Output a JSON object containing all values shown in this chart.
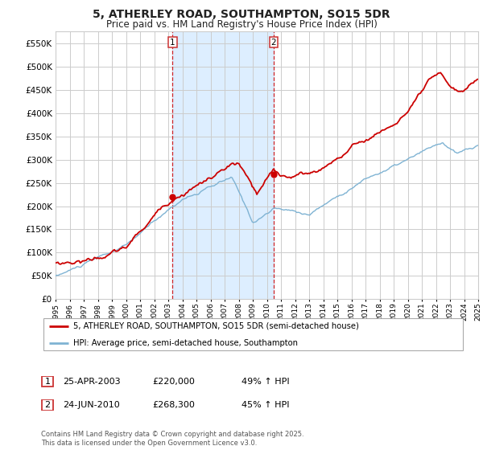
{
  "title": "5, ATHERLEY ROAD, SOUTHAMPTON, SO15 5DR",
  "subtitle": "Price paid vs. HM Land Registry's House Price Index (HPI)",
  "legend_line1": "5, ATHERLEY ROAD, SOUTHAMPTON, SO15 5DR (semi-detached house)",
  "legend_line2": "HPI: Average price, semi-detached house, Southampton",
  "transaction1_date": "25-APR-2003",
  "transaction1_price": 220000,
  "transaction1_pct": "49% ↑ HPI",
  "transaction1_label": "1",
  "transaction2_date": "24-JUN-2010",
  "transaction2_price": 268300,
  "transaction2_pct": "45% ↑ HPI",
  "transaction2_label": "2",
  "footer": "Contains HM Land Registry data © Crown copyright and database right 2025.\nThis data is licensed under the Open Government Licence v3.0.",
  "red_color": "#cc0000",
  "blue_color": "#7fb3d3",
  "shade_color": "#ddeeff",
  "grid_color": "#cccccc",
  "bg_color": "#ffffff",
  "title_color": "#222222",
  "ylim": [
    0,
    575000
  ],
  "yticks": [
    0,
    50000,
    100000,
    150000,
    200000,
    250000,
    300000,
    350000,
    400000,
    450000,
    500000,
    550000
  ],
  "x_start_year": 1995,
  "x_end_year": 2025,
  "transaction1_year": 2003.31,
  "transaction2_year": 2010.48
}
